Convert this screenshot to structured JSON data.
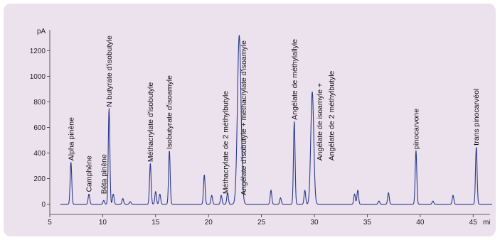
{
  "chart_data": {
    "type": "line",
    "title": "",
    "xlabel": "",
    "ylabel": "pA",
    "x_unit": "mi",
    "xlim": [
      5,
      47
    ],
    "ylim": [
      -80,
      1330
    ],
    "x_ticks": [
      5,
      10,
      15,
      20,
      25,
      30,
      35,
      40,
      45
    ],
    "y_ticks": [
      0,
      200,
      400,
      600,
      800,
      1000,
      1200
    ],
    "line_color": "#2a3a8c",
    "baseline": 0,
    "peaks": [
      {
        "x": 7.0,
        "height": 330
      },
      {
        "x": 8.7,
        "height": 80
      },
      {
        "x": 10.1,
        "height": 30
      },
      {
        "x": 10.6,
        "height": 750
      },
      {
        "x": 11.0,
        "height": 80
      },
      {
        "x": 11.9,
        "height": 45
      },
      {
        "x": 12.6,
        "height": 20
      },
      {
        "x": 14.5,
        "height": 320
      },
      {
        "x": 15.0,
        "height": 100
      },
      {
        "x": 15.4,
        "height": 80
      },
      {
        "x": 16.3,
        "height": 420
      },
      {
        "x": 19.6,
        "height": 230
      },
      {
        "x": 20.3,
        "height": 70
      },
      {
        "x": 21.2,
        "height": 70
      },
      {
        "x": 21.8,
        "height": 90
      },
      {
        "x": 22.9,
        "height": 1320
      },
      {
        "x": 25.9,
        "height": 110
      },
      {
        "x": 26.8,
        "height": 50
      },
      {
        "x": 28.1,
        "height": 650
      },
      {
        "x": 29.1,
        "height": 110
      },
      {
        "x": 29.8,
        "height": 880
      },
      {
        "x": 33.8,
        "height": 80
      },
      {
        "x": 34.1,
        "height": 110
      },
      {
        "x": 37.0,
        "height": 90
      },
      {
        "x": 39.6,
        "height": 420
      },
      {
        "x": 43.1,
        "height": 70
      },
      {
        "x": 45.3,
        "height": 450
      },
      {
        "x": 41.2,
        "height": 25
      },
      {
        "x": 36.1,
        "height": 25
      }
    ],
    "annotations": [
      {
        "x": 7.0,
        "y": 340,
        "text": "Alpha pinène"
      },
      {
        "x": 8.7,
        "y": 95,
        "text": "Camphène"
      },
      {
        "x": 10.1,
        "y": 80,
        "text": "Béta pinène"
      },
      {
        "x": 10.6,
        "y": 760,
        "text": "N butyrate d'isobutyle"
      },
      {
        "x": 14.5,
        "y": 330,
        "text": "Méthacrylate d'isobutyle"
      },
      {
        "x": 16.3,
        "y": 430,
        "text": "Isobutyrate d'isoamyle"
      },
      {
        "x": 21.6,
        "y": 80,
        "text": "Méthacrylate de 2 méthylbutyle"
      },
      {
        "x": 23.3,
        "y": 70,
        "text": "Angélate d'isobutyle + méthacrylate d'isoamyle"
      },
      {
        "x": 28.1,
        "y": 660,
        "text": "Angélate de méthylallyle"
      },
      {
        "x": 30.5,
        "y": 340,
        "text": "Angélate de isoamyle +"
      },
      {
        "x": 31.6,
        "y": 340,
        "text": "Angélate de 2 méthylbutyle"
      },
      {
        "x": 39.6,
        "y": 430,
        "text": "pinocarvone"
      },
      {
        "x": 45.3,
        "y": 460,
        "text": "trans pinocarvéol"
      }
    ]
  }
}
